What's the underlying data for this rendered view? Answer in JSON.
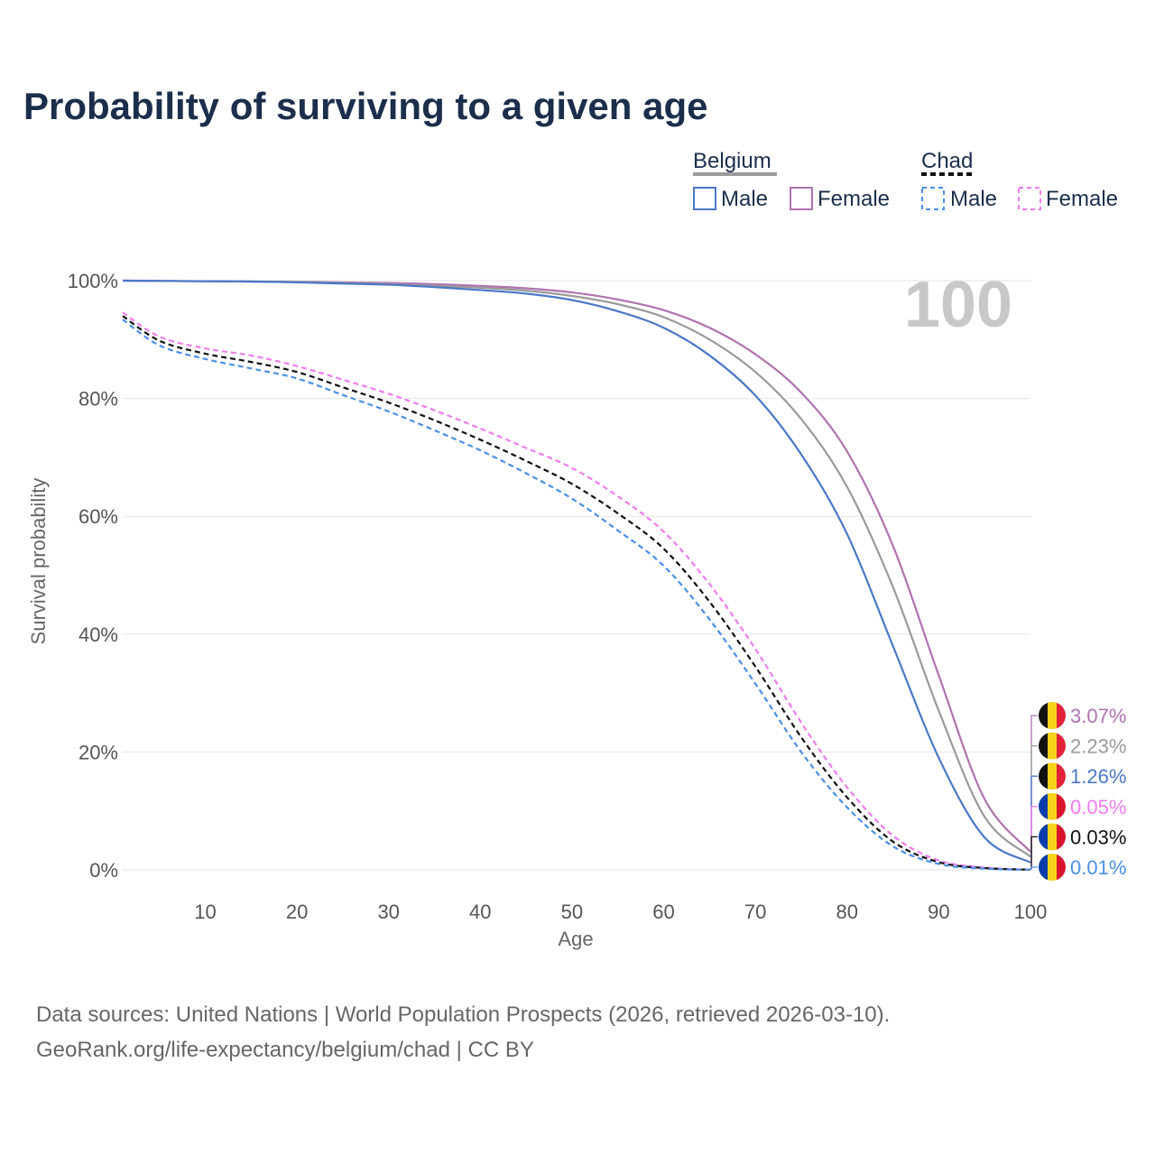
{
  "title": "Probability of surviving to a given age",
  "current_age": "100",
  "legend": {
    "groups": [
      {
        "name": "Belgium",
        "entries": [
          {
            "label": "Male",
            "series": "belgium_male"
          },
          {
            "label": "Female",
            "series": "belgium_female"
          }
        ]
      },
      {
        "name": "Chad",
        "entries": [
          {
            "label": "Male",
            "series": "chad_male"
          },
          {
            "label": "Female",
            "series": "chad_female"
          }
        ]
      }
    ]
  },
  "colors": {
    "belgium_male": "#4a78c7",
    "belgium_female": "#b072b0",
    "belgium_total": "#9a9a9a",
    "chad_male": "#4a8fe8",
    "chad_female": "#f07cf0",
    "chad_total": "#111111",
    "grid": "#e6e6e6",
    "title": "#1b2e4b"
  },
  "chart_data": {
    "type": "line",
    "title": "Probability of surviving to a given age",
    "xlabel": "Age",
    "ylabel": "Survival probability",
    "xlim": [
      1,
      100
    ],
    "ylim": [
      0,
      100
    ],
    "x_ticks": [
      10,
      20,
      30,
      40,
      50,
      60,
      70,
      80,
      90,
      100
    ],
    "y_ticks": [
      0,
      20,
      40,
      60,
      80,
      100
    ],
    "y_tick_labels": [
      "0%",
      "20%",
      "40%",
      "60%",
      "80%",
      "100%"
    ],
    "x": [
      1,
      5,
      10,
      15,
      20,
      25,
      30,
      35,
      40,
      45,
      50,
      55,
      60,
      65,
      70,
      75,
      80,
      85,
      90,
      95,
      100
    ],
    "series": [
      {
        "name": "Belgium Female",
        "key": "belgium_female",
        "dashed": false,
        "values": [
          100,
          99.95,
          99.9,
          99.85,
          99.8,
          99.7,
          99.6,
          99.4,
          99.1,
          98.7,
          98.0,
          96.8,
          95.0,
          92.0,
          87.5,
          81.0,
          71.0,
          55.0,
          33.0,
          12.0,
          3.07
        ]
      },
      {
        "name": "Belgium Total",
        "key": "belgium_total",
        "dashed": false,
        "values": [
          100,
          99.95,
          99.9,
          99.85,
          99.75,
          99.6,
          99.4,
          99.1,
          98.8,
          98.3,
          97.4,
          96.0,
          93.8,
          90.0,
          84.5,
          76.5,
          65.0,
          48.0,
          27.0,
          9.0,
          2.23
        ]
      },
      {
        "name": "Belgium Male",
        "key": "belgium_male",
        "dashed": false,
        "values": [
          100,
          99.95,
          99.9,
          99.85,
          99.7,
          99.5,
          99.3,
          98.9,
          98.4,
          97.8,
          96.7,
          94.8,
          92.0,
          87.3,
          80.5,
          70.5,
          57.0,
          38.0,
          19.0,
          5.5,
          1.26
        ]
      },
      {
        "name": "Chad Female",
        "key": "chad_female",
        "dashed": true,
        "values": [
          94.6,
          90.5,
          88.5,
          87.3,
          85.5,
          83.2,
          80.8,
          78.0,
          74.9,
          71.6,
          68.2,
          63.4,
          57.4,
          48.5,
          37.5,
          25.0,
          14.0,
          5.8,
          1.6,
          0.4,
          0.05
        ]
      },
      {
        "name": "Chad Total",
        "key": "chad_total",
        "dashed": true,
        "values": [
          94.0,
          89.8,
          87.6,
          86.2,
          84.5,
          81.9,
          79.3,
          76.3,
          73.0,
          69.4,
          65.5,
          60.5,
          54.5,
          45.5,
          34.5,
          22.5,
          12.3,
          4.8,
          1.3,
          0.3,
          0.03
        ]
      },
      {
        "name": "Chad Male",
        "key": "chad_male",
        "dashed": true,
        "values": [
          93.4,
          89.0,
          86.7,
          85.1,
          83.4,
          80.6,
          77.8,
          74.6,
          71.2,
          67.3,
          63.0,
          57.6,
          51.6,
          42.5,
          31.6,
          20.0,
          10.6,
          4.0,
          1.0,
          0.2,
          0.01
        ]
      }
    ],
    "end_labels": [
      {
        "text": "3.07%",
        "value": 3.07,
        "key": "belgium_female",
        "flag": "belgium"
      },
      {
        "text": "2.23%",
        "value": 2.23,
        "key": "belgium_total",
        "flag": "belgium"
      },
      {
        "text": "1.26%",
        "value": 1.26,
        "key": "belgium_male",
        "flag": "belgium"
      },
      {
        "text": "0.05%",
        "value": 0.05,
        "key": "chad_female",
        "flag": "chad"
      },
      {
        "text": "0.03%",
        "value": 0.03,
        "key": "chad_total",
        "flag": "chad"
      },
      {
        "text": "0.01%",
        "value": 0.01,
        "key": "chad_male",
        "flag": "chad"
      }
    ]
  },
  "source": {
    "line1": "Data sources: United Nations | World Population Prospects (2026, retrieved 2026-03-10).",
    "line2": "GeoRank.org/life-expectancy/belgium/chad | CC BY"
  }
}
